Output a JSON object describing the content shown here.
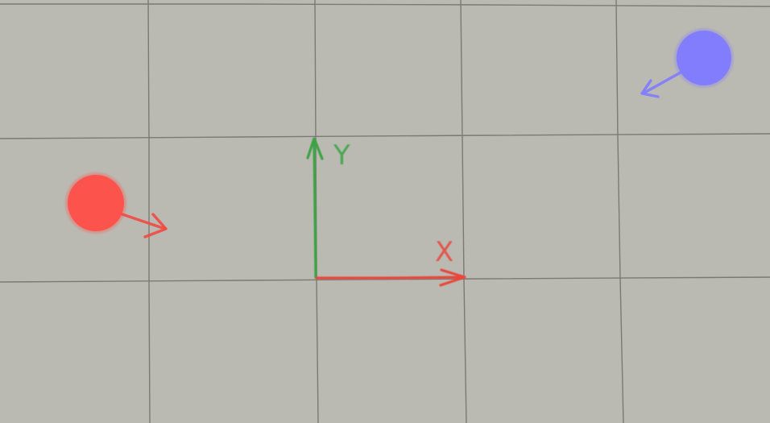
{
  "scene": {
    "background_color": "#bbbab2",
    "grid_line_color": "#6f6f6a"
  },
  "axes": {
    "x": {
      "label": "X",
      "color": "#e8473a"
    },
    "y": {
      "label": "Y",
      "color": "#3aa342"
    }
  },
  "bodies": [
    {
      "id": "red-ball",
      "color": "#ff4f4a",
      "velocity_arrow_color": "#ef4a43"
    },
    {
      "id": "blue-ball",
      "color": "#7f7bff",
      "velocity_arrow_color": "#7f7bff"
    }
  ]
}
